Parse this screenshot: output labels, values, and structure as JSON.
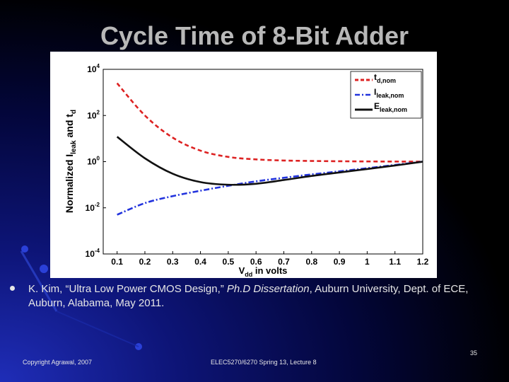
{
  "slide": {
    "title": "Cycle Time of 8-Bit Adder",
    "reference": {
      "part1": "K. Kim, “Ultra Low Power CMOS Design,” ",
      "italic": "Ph.D Dissertation",
      "part2": ", Auburn University, Dept. of ECE, Auburn, Alabama, May 2011."
    },
    "footer_left": "Copyright Agrawal, 2007",
    "footer_center": "ELEC5270/6270 Spring 13, Lecture 8",
    "page_number": "35"
  },
  "chart_data": {
    "type": "line",
    "title": "",
    "xlabel": "V_dd in volts",
    "ylabel": "Normalized I_leak and t_d",
    "xlim": [
      0.05,
      1.2
    ],
    "ylim_log10": [
      -4,
      4
    ],
    "yscale": "log",
    "grid": false,
    "legend_position": "top-right",
    "x_ticks": [
      "0.1",
      "0.2",
      "0.3",
      "0.4",
      "0.5",
      "0.6",
      "0.7",
      "0.8",
      "0.9",
      "1",
      "1.1",
      "1.2"
    ],
    "y_ticks": [
      "10^-4",
      "10^-2",
      "10^0",
      "10^2",
      "10^4"
    ],
    "x": [
      0.1,
      0.2,
      0.3,
      0.4,
      0.5,
      0.6,
      0.7,
      0.8,
      0.9,
      1.0,
      1.1,
      1.2
    ],
    "series": [
      {
        "name": "t_d,nom",
        "color": "#dd2222",
        "style": "dashed",
        "values": [
          2500.0,
          100.0,
          11.0,
          3.0,
          1.6,
          1.25,
          1.12,
          1.07,
          1.04,
          1.02,
          1.01,
          1.0
        ]
      },
      {
        "name": "I_leak,nom",
        "color": "#2233dd",
        "style": "dashdot",
        "values": [
          0.005,
          0.016,
          0.032,
          0.055,
          0.09,
          0.14,
          0.2,
          0.28,
          0.38,
          0.52,
          0.72,
          1.0
        ]
      },
      {
        "name": "E_leak,nom",
        "color": "#111111",
        "style": "solid",
        "values": [
          12.0,
          1.4,
          0.3,
          0.13,
          0.1,
          0.11,
          0.16,
          0.24,
          0.34,
          0.48,
          0.68,
          1.0
        ]
      }
    ]
  }
}
